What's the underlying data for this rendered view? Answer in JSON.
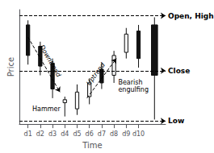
{
  "chart_data": {
    "type": "candlestick",
    "xlabel": "Time",
    "ylabel": "Price",
    "x": [
      1,
      2,
      3,
      4,
      5,
      6,
      7,
      8,
      9,
      10,
      11.3
    ],
    "open": [
      90,
      76,
      65,
      39,
      35,
      43,
      52,
      57,
      72,
      86,
      57
    ],
    "close": [
      70,
      63,
      48,
      41,
      46,
      52,
      61,
      70,
      84,
      68,
      90
    ],
    "high": [
      93,
      79,
      68,
      43,
      51,
      55,
      65,
      73,
      88,
      90,
      95
    ],
    "low": [
      64,
      57,
      42,
      30,
      31,
      38,
      48,
      52,
      68,
      62,
      28
    ],
    "color": "#111111",
    "colors": [
      "#111111",
      "#111111",
      "#111111",
      "#f8f8f8",
      "#f8f8f8",
      "#f8f8f8",
      "#111111",
      "#f8f8f8",
      "#f8f8f8",
      "#111111",
      "#111111"
    ],
    "xlim": [
      0.3,
      12.2
    ],
    "xticks": [
      {
        "value": 1,
        "label": "d1"
      },
      {
        "value": 2,
        "label": "d2"
      },
      {
        "value": 3,
        "label": "d3"
      },
      {
        "value": 4,
        "label": "d4"
      },
      {
        "value": 5,
        "label": "d5"
      },
      {
        "value": 6,
        "label": "d6"
      },
      {
        "value": 7,
        "label": "d7"
      },
      {
        "value": 8,
        "label": "d8"
      },
      {
        "value": 9,
        "label": "d9"
      },
      {
        "value": 10,
        "label": "d10"
      }
    ],
    "ylim": [
      25,
      100
    ],
    "tick_labels": "x",
    "grid": false,
    "annotations": [
      {
        "text": "Open, High",
        "y": 96
      },
      {
        "text": "Close",
        "y": 60
      },
      {
        "text": "Low",
        "y": 27
      },
      {
        "text": "Downtrend"
      },
      {
        "text": "Uptrend"
      },
      {
        "text": "Hammer"
      },
      {
        "text": "Bearish\nengulfing"
      }
    ]
  }
}
